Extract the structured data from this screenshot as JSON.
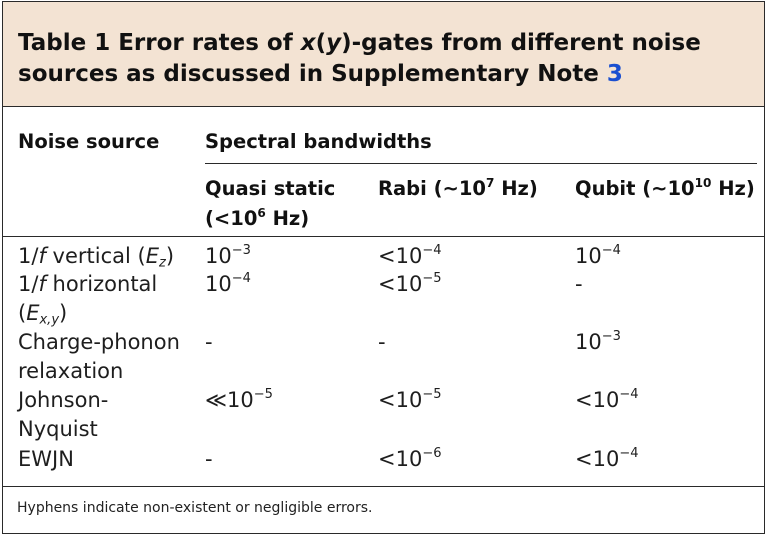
{
  "caption": {
    "table_number": "Table 1",
    "text_before_italic": "Error rates of ",
    "italic_x": "x",
    "paren_open": "(",
    "italic_y": "y",
    "text_after_italic": ")-gates from different noise sources as discussed in Supplementary Note ",
    "note_ref": "3"
  },
  "headers": {
    "noise_source": "Noise source",
    "spectral": "Spectral bandwidths",
    "quasi_line1": "Quasi static",
    "quasi_line2_prefix": "(<10",
    "quasi_line2_exp": "6",
    "quasi_line2_suffix": " Hz)",
    "rabi_prefix": "Rabi (~10",
    "rabi_exp": "7",
    "rabi_suffix": " Hz)",
    "qubit_prefix": "Qubit (~10",
    "qubit_exp": "10",
    "qubit_suffix": " Hz)"
  },
  "rows": [
    {
      "source_line1_num": "1/",
      "source_line1_f": "f",
      "source_line1_rest": " vertical (",
      "source_line1_var": "E",
      "source_line1_sub": "z",
      "source_line1_close": ")",
      "quasi_base": "10",
      "quasi_exp": "−3",
      "rabi_base": "<10",
      "rabi_exp": "−4",
      "qubit_base": "10",
      "qubit_exp": "−4"
    },
    {
      "source_line1_num": "1/",
      "source_line1_f": "f",
      "source_line1_rest": " horizontal",
      "source_line2_open": "(",
      "source_line2_var": "E",
      "source_line2_sub": "x,y",
      "source_line2_close": ")",
      "quasi_base": "10",
      "quasi_exp": "−4",
      "rabi_base": "<10",
      "rabi_exp": "−5",
      "qubit_text": "-"
    },
    {
      "source_line1": "Charge-phonon",
      "source_line2": "relaxation",
      "quasi_text": "-",
      "rabi_text": "-",
      "qubit_base": "10",
      "qubit_exp": "−3"
    },
    {
      "source_line1": "Johnson-",
      "source_line2": "Nyquist",
      "quasi_base": "≪10",
      "quasi_exp": "−5",
      "rabi_base": "<10",
      "rabi_exp": "−5",
      "qubit_base": "<10",
      "qubit_exp": "−4"
    },
    {
      "source_line1": "EWJN",
      "quasi_text": "-",
      "rabi_base": "<10",
      "rabi_exp": "−6",
      "qubit_base": "<10",
      "qubit_exp": "−4"
    }
  ],
  "footnote": "Hyphens indicate non-existent or negligible errors."
}
